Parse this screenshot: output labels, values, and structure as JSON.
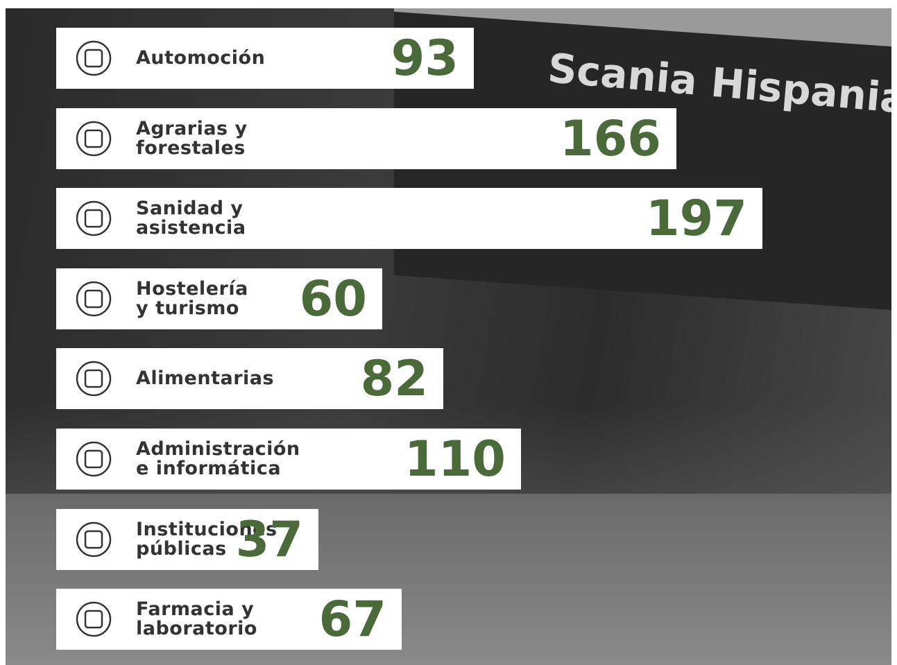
{
  "chart_data": {
    "type": "bar",
    "orientation": "horizontal",
    "background_sign": "Scania Hispania",
    "color": "#ffffff",
    "value_color": "#4b6a3a",
    "categories": [
      "Automoción",
      "Agrarias y\nforestales",
      "Sanidad y\nasistencia",
      "Hostelería\ny turismo",
      "Alimentarias",
      "Administración\ne informática",
      "Instituciones\npúblicas",
      "Farmacia y\nlaboratorio"
    ],
    "values": [
      93,
      166,
      197,
      60,
      82,
      110,
      37,
      67
    ]
  }
}
